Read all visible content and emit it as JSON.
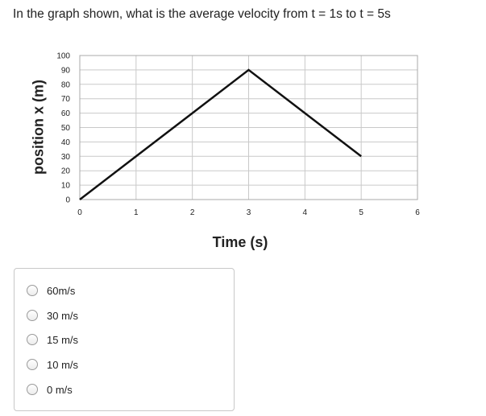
{
  "question": {
    "text": "In the graph shown, what is the average velocity from t = 1s to t = 5s"
  },
  "chart_data": {
    "type": "line",
    "xlabel": "Time (s)",
    "ylabel": "position x (m)",
    "xlim": [
      0,
      6
    ],
    "ylim": [
      0,
      100
    ],
    "xticks": [
      "0",
      "1",
      "2",
      "3",
      "4",
      "5",
      "6"
    ],
    "yticks": [
      "0",
      "10",
      "20",
      "30",
      "40",
      "50",
      "60",
      "70",
      "80",
      "90",
      "100"
    ],
    "grid": true,
    "series": [
      {
        "x": [
          0,
          1,
          2,
          3,
          4,
          5
        ],
        "y": [
          0,
          30,
          60,
          90,
          60,
          30
        ]
      }
    ]
  },
  "answers": {
    "options": [
      {
        "label": "60m/s"
      },
      {
        "label": "30 m/s"
      },
      {
        "label": "15 m/s"
      },
      {
        "label": "10 m/s"
      },
      {
        "label": "0 m/s"
      }
    ]
  }
}
